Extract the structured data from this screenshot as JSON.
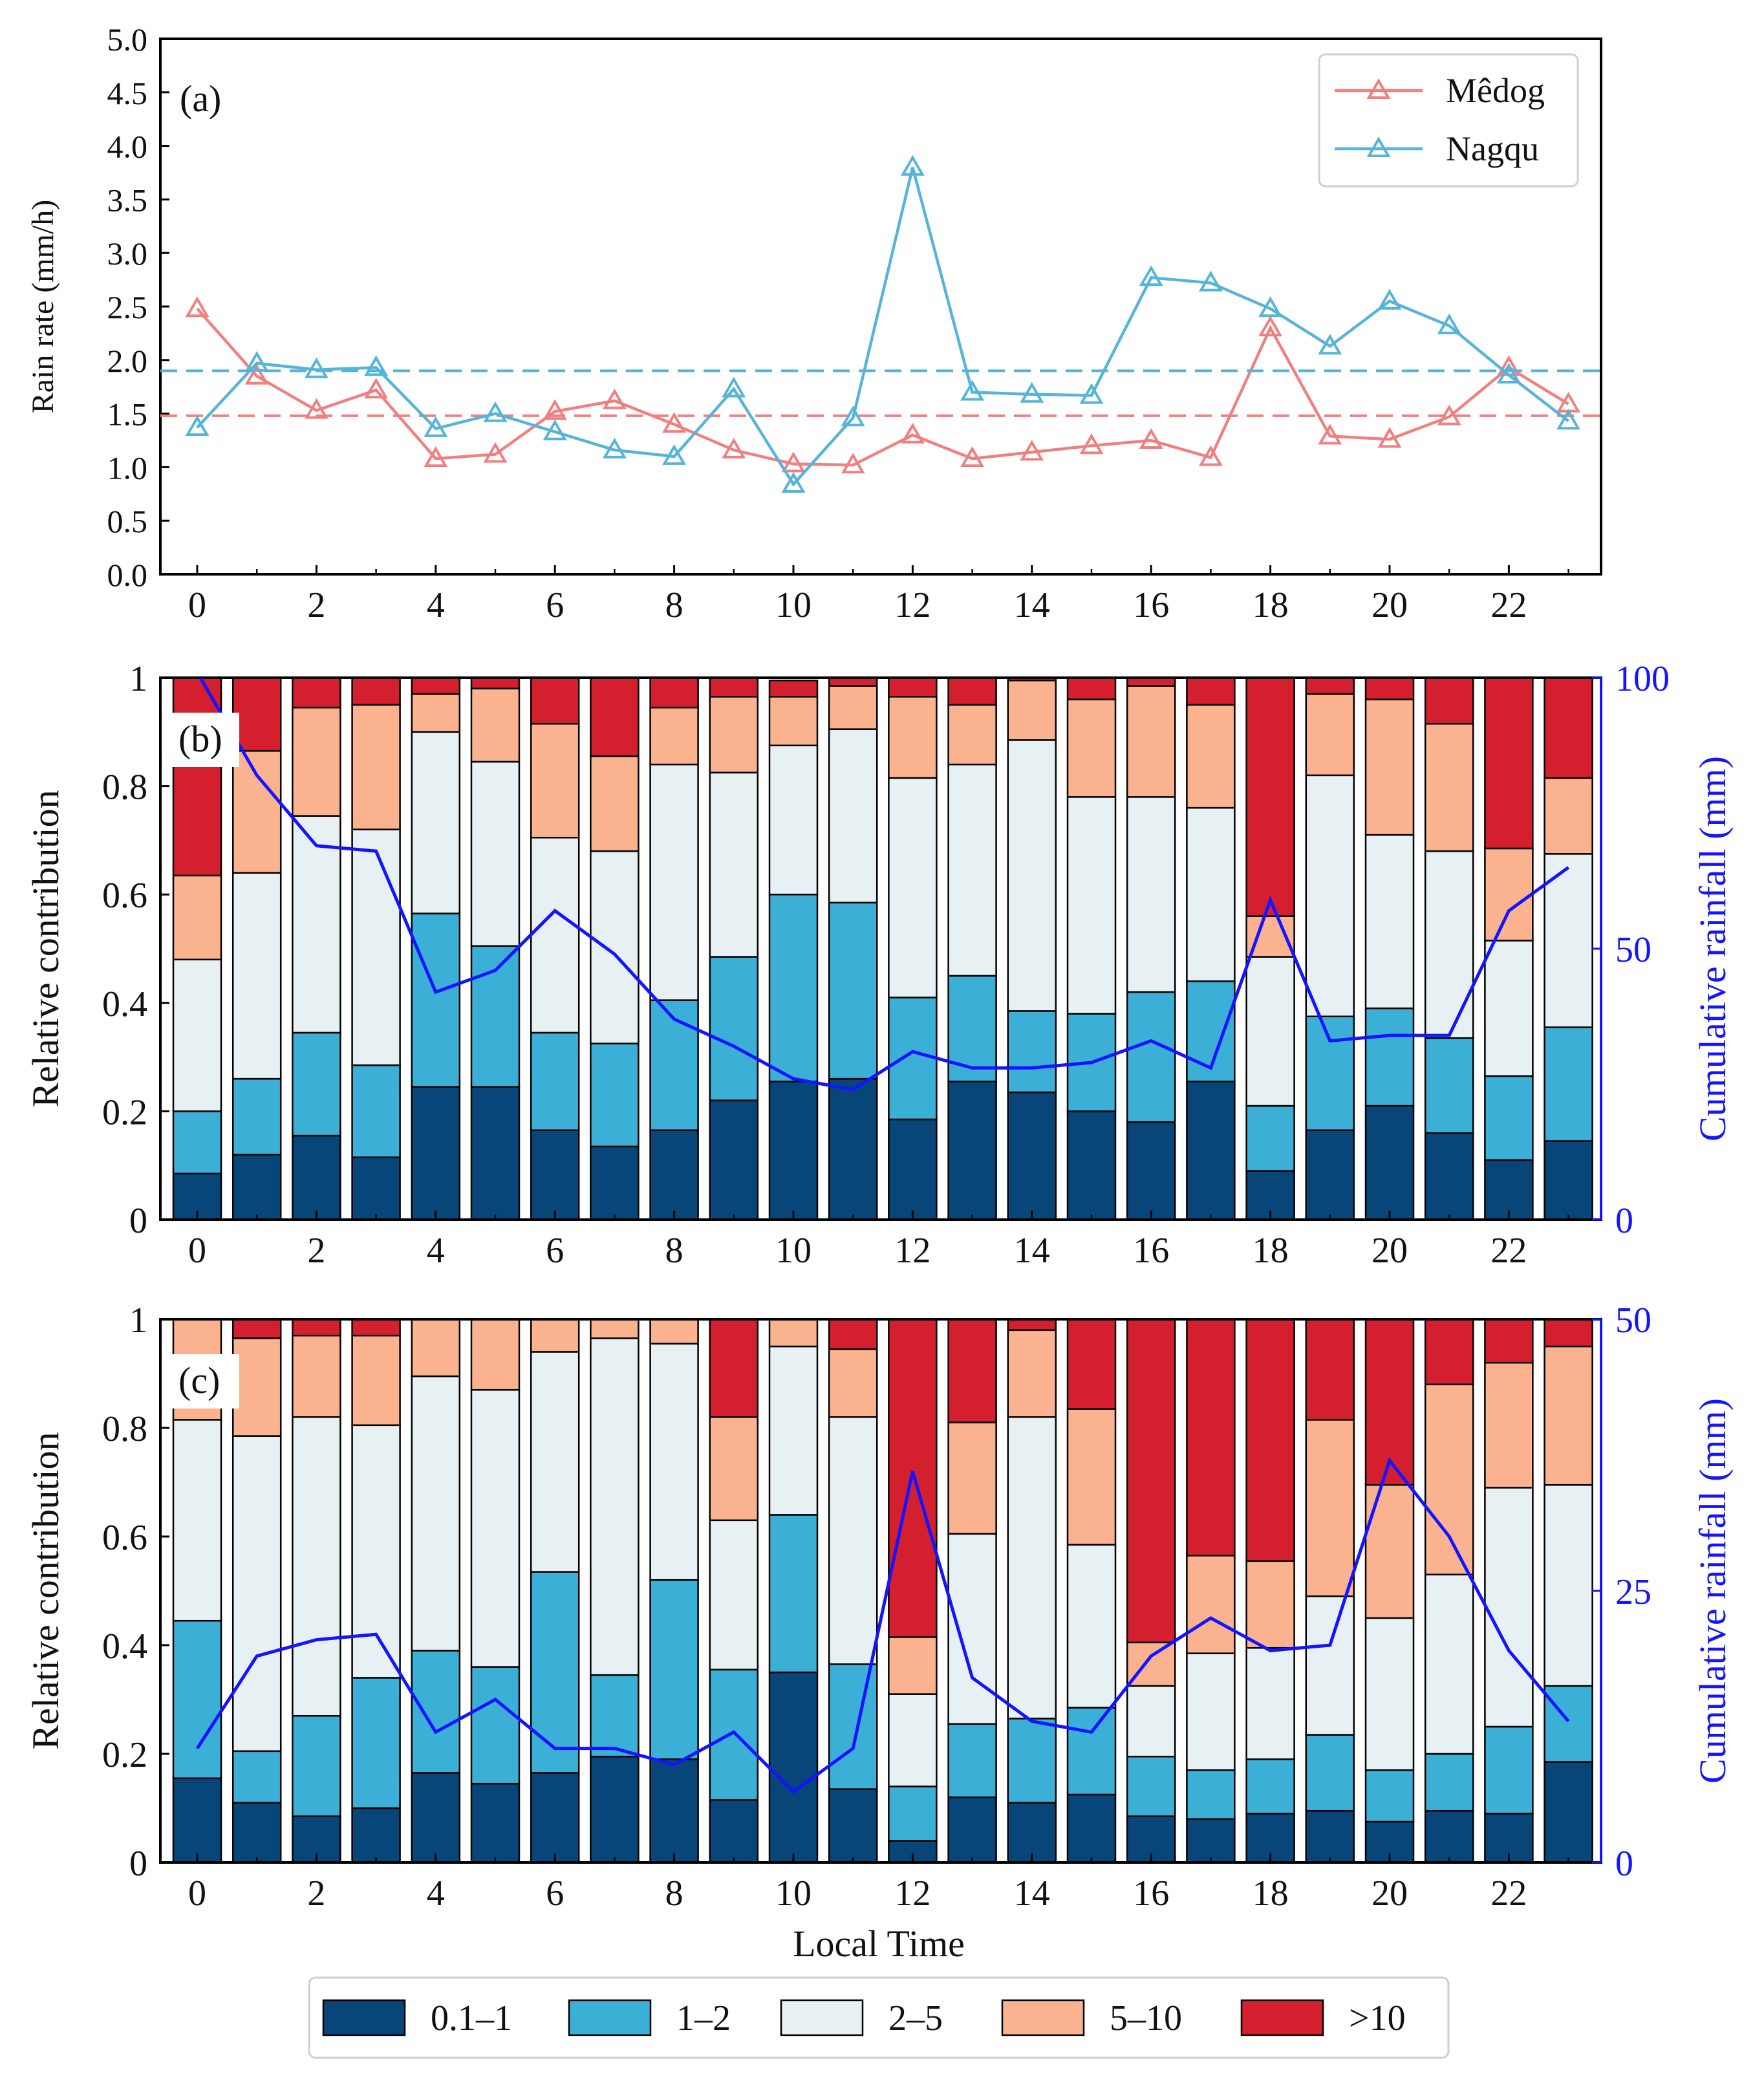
{
  "colors": {
    "medog": "#f08080",
    "nagqu": "#56b4d9",
    "cum_line": "#1414ff",
    "bins": [
      "#08467a",
      "#3bafd6",
      "#e7f1f4",
      "#fbb38f",
      "#d41f2f"
    ]
  },
  "bins": [
    "0.1–1",
    "1–2",
    "2–5",
    "5–10",
    ">10"
  ],
  "xlabel": "Local Time",
  "chart_data": [
    {
      "type": "line",
      "panel_label": "(a)",
      "ylabel": "Rain rate (mm/h)",
      "ylim": [
        0,
        5
      ],
      "yticks": [
        "0.0",
        "0.5",
        "1.0",
        "1.5",
        "2.0",
        "2.5",
        "3.0",
        "3.5",
        "4.0",
        "4.5",
        "5.0"
      ],
      "xticks": [
        "0",
        "2",
        "4",
        "6",
        "8",
        "10",
        "12",
        "14",
        "16",
        "18",
        "20",
        "22"
      ],
      "x": [
        0,
        1,
        2,
        3,
        4,
        5,
        6,
        7,
        8,
        9,
        10,
        11,
        12,
        13,
        14,
        15,
        16,
        17,
        18,
        19,
        20,
        21,
        22,
        23
      ],
      "legend_position": "top-right",
      "series": [
        {
          "name": "Mêdog",
          "color_key": "medog",
          "mean": 1.48,
          "values": [
            2.48,
            1.85,
            1.53,
            1.72,
            1.08,
            1.12,
            1.52,
            1.62,
            1.4,
            1.16,
            1.03,
            1.02,
            1.3,
            1.08,
            1.14,
            1.2,
            1.25,
            1.09,
            2.3,
            1.29,
            1.26,
            1.47,
            1.93,
            1.59
          ]
        },
        {
          "name": "Nagqu",
          "color_key": "nagqu",
          "mean": 1.9,
          "values": [
            1.37,
            1.97,
            1.91,
            1.93,
            1.36,
            1.5,
            1.33,
            1.16,
            1.1,
            1.73,
            0.84,
            1.46,
            3.8,
            1.7,
            1.68,
            1.67,
            2.77,
            2.72,
            2.48,
            2.13,
            2.55,
            2.32,
            1.86,
            1.43
          ]
        }
      ]
    },
    {
      "type": "bar",
      "stacked": true,
      "panel_label": "(b)",
      "ylabel": "Relative contribution",
      "ylabel2": "Cumulative rainfall (mm)",
      "ylim": [
        0,
        1
      ],
      "yticks": [
        "0",
        "0.2",
        "0.4",
        "0.6",
        "0.8",
        "1"
      ],
      "ylim2": [
        0,
        100
      ],
      "yticks2": [
        "0",
        "50",
        "100"
      ],
      "xticks": [
        "0",
        "2",
        "4",
        "6",
        "8",
        "10",
        "12",
        "14",
        "16",
        "18",
        "20",
        "22"
      ],
      "x": [
        0,
        1,
        2,
        3,
        4,
        5,
        6,
        7,
        8,
        9,
        10,
        11,
        12,
        13,
        14,
        15,
        16,
        17,
        18,
        19,
        20,
        21,
        22,
        23
      ],
      "series": [
        {
          "name": "0.1–1",
          "values": [
            0.085,
            0.12,
            0.155,
            0.115,
            0.245,
            0.245,
            0.165,
            0.135,
            0.165,
            0.22,
            0.255,
            0.26,
            0.185,
            0.255,
            0.235,
            0.2,
            0.18,
            0.255,
            0.09,
            0.165,
            0.21,
            0.16,
            0.11,
            0.145
          ]
        },
        {
          "name": "1–2",
          "values": [
            0.115,
            0.14,
            0.19,
            0.17,
            0.32,
            0.26,
            0.18,
            0.19,
            0.24,
            0.265,
            0.345,
            0.325,
            0.225,
            0.195,
            0.15,
            0.18,
            0.24,
            0.185,
            0.12,
            0.21,
            0.18,
            0.175,
            0.155,
            0.21
          ]
        },
        {
          "name": "2–5",
          "values": [
            0.28,
            0.38,
            0.4,
            0.435,
            0.335,
            0.34,
            0.36,
            0.355,
            0.435,
            0.34,
            0.275,
            0.32,
            0.405,
            0.39,
            0.5,
            0.4,
            0.36,
            0.32,
            0.275,
            0.445,
            0.32,
            0.345,
            0.25,
            0.32
          ]
        },
        {
          "name": "5–10",
          "values": [
            0.155,
            0.225,
            0.2,
            0.23,
            0.07,
            0.135,
            0.21,
            0.175,
            0.105,
            0.14,
            0.09,
            0.08,
            0.15,
            0.11,
            0.11,
            0.18,
            0.205,
            0.19,
            0.075,
            0.15,
            0.25,
            0.235,
            0.17,
            0.14
          ]
        },
        {
          "name": ">10",
          "values": [
            0.365,
            0.135,
            0.055,
            0.05,
            0.03,
            0.02,
            0.085,
            0.145,
            0.055,
            0.035,
            0.03,
            0.015,
            0.035,
            0.05,
            0.005,
            0.04,
            0.015,
            0.05,
            0.44,
            0.03,
            0.04,
            0.085,
            0.315,
            0.185
          ]
        }
      ],
      "cumulative": {
        "name": "Cumulative rainfall",
        "values": [
          101,
          82,
          69,
          68,
          42,
          46,
          57,
          49,
          37,
          32,
          26,
          24,
          31,
          28,
          28,
          29,
          33,
          28,
          59,
          33,
          34,
          34,
          57,
          65
        ]
      }
    },
    {
      "type": "bar",
      "stacked": true,
      "panel_label": "(c)",
      "ylabel": "Relative contribution",
      "ylabel2": "Cumulative rainfall (mm)",
      "ylim": [
        0,
        1
      ],
      "yticks": [
        "0",
        "0.2",
        "0.4",
        "0.6",
        "0.8",
        "1"
      ],
      "ylim2": [
        0,
        50
      ],
      "yticks2": [
        "0",
        "25",
        "50"
      ],
      "xticks": [
        "0",
        "2",
        "4",
        "6",
        "8",
        "10",
        "12",
        "14",
        "16",
        "18",
        "20",
        "22"
      ],
      "x": [
        0,
        1,
        2,
        3,
        4,
        5,
        6,
        7,
        8,
        9,
        10,
        11,
        12,
        13,
        14,
        15,
        16,
        17,
        18,
        19,
        20,
        21,
        22,
        23
      ],
      "series": [
        {
          "name": "0.1–1",
          "values": [
            0.155,
            0.11,
            0.085,
            0.1,
            0.165,
            0.145,
            0.165,
            0.195,
            0.19,
            0.115,
            0.35,
            0.135,
            0.04,
            0.12,
            0.11,
            0.125,
            0.085,
            0.08,
            0.09,
            0.095,
            0.075,
            0.095,
            0.09,
            0.185
          ]
        },
        {
          "name": "1–2",
          "values": [
            0.29,
            0.095,
            0.185,
            0.24,
            0.225,
            0.215,
            0.37,
            0.15,
            0.33,
            0.24,
            0.29,
            0.23,
            0.1,
            0.135,
            0.155,
            0.16,
            0.11,
            0.09,
            0.1,
            0.14,
            0.095,
            0.105,
            0.16,
            0.14
          ]
        },
        {
          "name": "2–5",
          "values": [
            0.37,
            0.58,
            0.55,
            0.465,
            0.505,
            0.51,
            0.405,
            0.62,
            0.435,
            0.275,
            0.31,
            0.455,
            0.17,
            0.35,
            0.555,
            0.3,
            0.13,
            0.215,
            0.205,
            0.255,
            0.28,
            0.33,
            0.44,
            0.37
          ]
        },
        {
          "name": "5–10",
          "values": [
            0.185,
            0.18,
            0.15,
            0.165,
            0.105,
            0.13,
            0.06,
            0.035,
            0.045,
            0.19,
            0.05,
            0.125,
            0.105,
            0.205,
            0.16,
            0.25,
            0.08,
            0.18,
            0.16,
            0.325,
            0.245,
            0.35,
            0.23,
            0.255
          ]
        },
        {
          "name": ">10",
          "values": [
            0.0,
            0.035,
            0.03,
            0.03,
            0.0,
            0.0,
            0.0,
            0.0,
            0.0,
            0.18,
            0.0,
            0.055,
            0.585,
            0.19,
            0.02,
            0.165,
            0.595,
            0.435,
            0.445,
            0.185,
            0.305,
            0.12,
            0.08,
            0.05
          ]
        }
      ],
      "cumulative": {
        "name": "Cumulative rainfall",
        "values": [
          10.5,
          19,
          20.5,
          21,
          12,
          15,
          10.5,
          10.5,
          9,
          12,
          6.5,
          10.5,
          36,
          17,
          13,
          12,
          19,
          22.5,
          19.5,
          20,
          37,
          30,
          19.5,
          13
        ]
      }
    }
  ]
}
